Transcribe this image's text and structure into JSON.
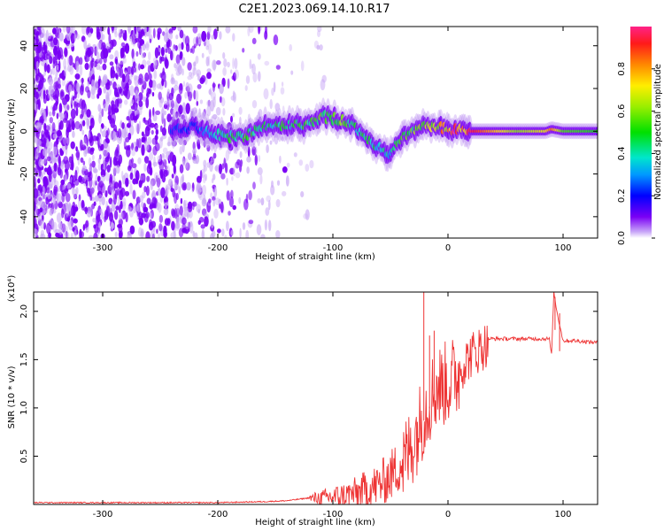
{
  "title": "C2E1.2023.069.14.10.R17",
  "chart_data": [
    {
      "type": "heatmap",
      "name": "spectrogram",
      "xlabel": "Height of straight line (km)",
      "ylabel": "Frequency (Hz)",
      "xlim": [
        -360,
        130
      ],
      "ylim": [
        -50,
        49
      ],
      "xticks": [
        -300,
        -200,
        -100,
        0,
        100
      ],
      "xtick_labels": [
        "-300",
        "-200",
        "-100",
        "0",
        "100"
      ],
      "yticks": [
        -40,
        -20,
        0,
        20,
        40
      ],
      "ytick_labels": [
        "-40",
        "-20",
        "0",
        "20",
        "40"
      ],
      "colorbar": {
        "label": "Normalized spectral amplitude",
        "range": [
          0,
          1
        ],
        "ticks": [
          0.0,
          0.2,
          0.4,
          0.6,
          0.8
        ],
        "tick_labels": [
          "0.0",
          "0.2",
          "0.4",
          "0.6",
          "0.8"
        ]
      },
      "ridge": {
        "x": [
          -240,
          -220,
          -200,
          -180,
          -160,
          -140,
          -120,
          -110,
          -100,
          -90,
          -80,
          -70,
          -60,
          -50,
          -40,
          -30,
          -20,
          -10,
          0,
          20,
          60,
          85,
          90,
          100,
          130
        ],
        "freq": [
          0,
          2,
          -2,
          -3,
          2,
          3,
          3,
          7,
          6,
          5,
          1,
          -3,
          -8,
          -10,
          -3,
          0,
          2,
          2,
          1,
          0,
          0,
          0,
          1,
          0,
          0
        ],
        "amplitude": [
          0.2,
          0.25,
          0.4,
          0.5,
          0.45,
          0.45,
          0.5,
          0.55,
          0.55,
          0.5,
          0.45,
          0.45,
          0.4,
          0.35,
          0.5,
          0.55,
          0.6,
          0.7,
          0.8,
          0.95,
          0.6,
          0.7,
          0.85,
          0.55,
          0.5
        ]
      },
      "noise_region_x": [
        -360,
        -140
      ]
    },
    {
      "type": "line",
      "name": "snr",
      "xlabel": "Height of straight line (km)",
      "ylabel": "SNR (10 * v/v)",
      "yscale_label": "(x10⁴)",
      "xlim": [
        -360,
        130
      ],
      "ylim": [
        0,
        2.2
      ],
      "xticks": [
        -300,
        -200,
        -100,
        0,
        100
      ],
      "xtick_labels": [
        "-300",
        "-200",
        "-100",
        "0",
        "100"
      ],
      "yticks": [
        0.5,
        1.0,
        1.5,
        2.0
      ],
      "ytick_labels": [
        "0.5",
        "1.0",
        "1.5",
        "2.0"
      ],
      "color": "#ee3333",
      "x": [
        -360,
        -300,
        -250,
        -200,
        -160,
        -140,
        -120,
        -100,
        -90,
        -80,
        -70,
        -60,
        -50,
        -40,
        -35,
        -30,
        -25,
        -20,
        -15,
        -10,
        0,
        10,
        20,
        30,
        35,
        40,
        60,
        80,
        88,
        90,
        92,
        95,
        100,
        110,
        130
      ],
      "y": [
        0.02,
        0.02,
        0.02,
        0.02,
        0.03,
        0.04,
        0.07,
        0.1,
        0.12,
        0.15,
        0.2,
        0.25,
        0.35,
        0.5,
        0.6,
        0.75,
        0.9,
        1.05,
        1.2,
        1.3,
        1.35,
        1.45,
        1.6,
        1.68,
        1.72,
        1.72,
        1.72,
        1.72,
        1.72,
        1.55,
        2.2,
        1.98,
        1.7,
        1.7,
        1.68
      ],
      "spike_peaks": [
        {
          "x": -21,
          "y": 2.2
        },
        {
          "x": -16,
          "y": 1.75
        },
        {
          "x": -12,
          "y": 1.8
        },
        {
          "x": 93,
          "y": 2.15
        },
        {
          "x": 97,
          "y": 1.98
        }
      ]
    }
  ]
}
